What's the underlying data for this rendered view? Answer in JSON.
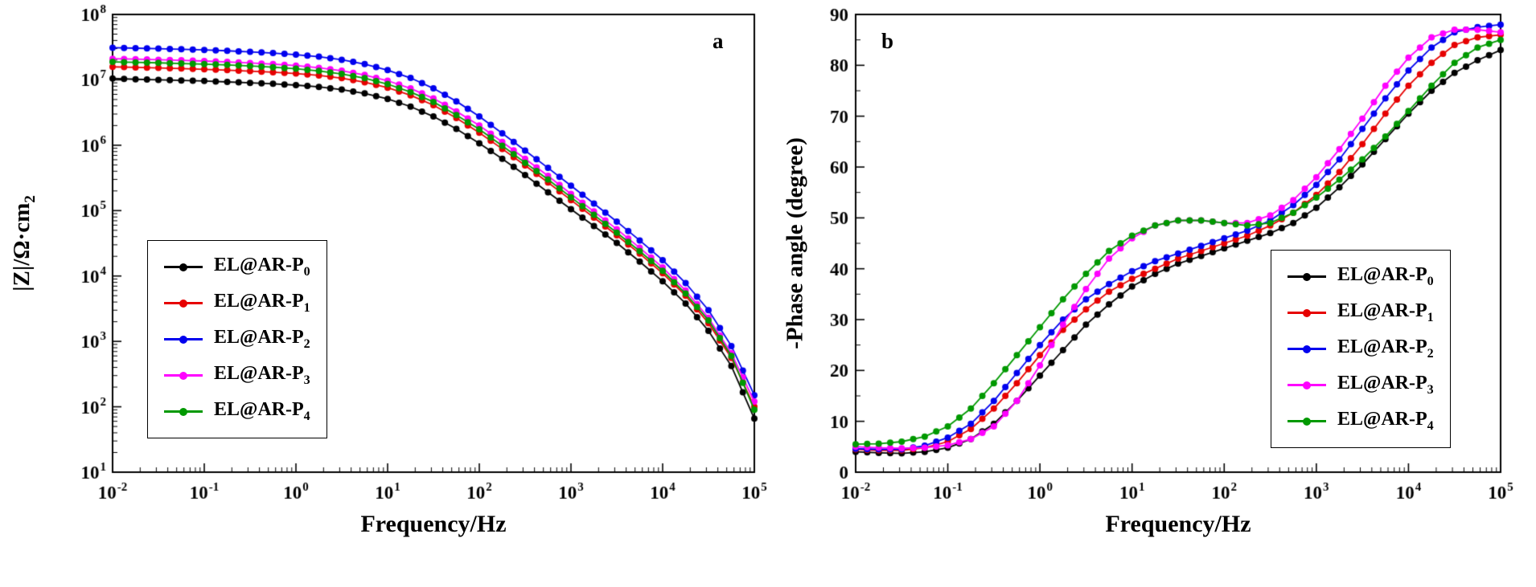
{
  "figure": {
    "background": "#ffffff",
    "panels": [
      {
        "label": "a",
        "x_title": "Frequency/Hz",
        "y_title_base": "|Z|/Ω·cm",
        "y_title_sub": "2"
      },
      {
        "label": "b",
        "x_title": "Frequency/Hz",
        "y_title": "-Phase angle (degree)"
      }
    ]
  },
  "chart_data": [
    {
      "type": "line",
      "title": "Bode impedance modulus plot (panel a)",
      "xlabel": "Frequency/Hz",
      "ylabel": "|Z|/Ω·cm2",
      "xscale": "log",
      "yscale": "log",
      "xlim": [
        0.01,
        100000
      ],
      "ylim": [
        10,
        100000000
      ],
      "xtick_exponents": [
        -2,
        -1,
        0,
        1,
        2,
        3,
        4,
        5
      ],
      "ytick_exponents": [
        1,
        2,
        3,
        4,
        5,
        6,
        7,
        8
      ],
      "legend_position": "lower-left",
      "grid": false,
      "x": [
        0.01,
        0.0178,
        0.0316,
        0.0562,
        0.1,
        0.178,
        0.316,
        0.562,
        1,
        1.78,
        3.16,
        5.62,
        10,
        17.8,
        31.6,
        56.2,
        100,
        178,
        316,
        562,
        1000,
        1780,
        3160,
        5620,
        10000,
        17800,
        31600,
        56200,
        100000
      ],
      "series": [
        {
          "name": "EL@AR-P0",
          "label_base": "EL@AR-P",
          "label_sub": "0",
          "color": "#000000",
          "values": [
            10500000,
            10200000,
            10000000,
            9800000,
            9600000,
            9300000,
            9000000,
            8700000,
            8300000,
            7800000,
            7100000,
            6200000,
            5100000,
            3900000,
            2750000,
            1780000,
            1070000,
            620000,
            350000,
            190000,
            105000,
            58000,
            32000,
            16600,
            8300,
            3800,
            1450,
            420,
            66
          ]
        },
        {
          "name": "EL@AR-P1",
          "label_base": "EL@AR-P",
          "label_sub": "1",
          "color": "#e60000",
          "values": [
            15800000,
            15500000,
            15200000,
            14900000,
            14500000,
            14100000,
            13600000,
            13100000,
            12500000,
            11700000,
            10600000,
            9200000,
            7600000,
            5800000,
            4100000,
            2600000,
            1550000,
            880000,
            490000,
            270000,
            145000,
            78000,
            42000,
            22000,
            11000,
            5000,
            1900,
            560,
            100
          ]
        },
        {
          "name": "EL@AR-P2",
          "label_base": "EL@AR-P",
          "label_sub": "2",
          "color": "#0000ee",
          "values": [
            31000000,
            30500000,
            30000000,
            29400000,
            28700000,
            27800000,
            26800000,
            25700000,
            24300000,
            22600000,
            20300000,
            17400000,
            14100000,
            10700000,
            7400000,
            4700000,
            2750000,
            1520000,
            830000,
            450000,
            240000,
            128000,
            68000,
            35000,
            17500,
            7800,
            3000,
            850,
            150
          ]
        },
        {
          "name": "EL@AR-P3",
          "label_base": "EL@AR-P",
          "label_sub": "3",
          "color": "#ff00ff",
          "values": [
            21000000,
            20700000,
            20300000,
            19900000,
            19400000,
            18800000,
            18100000,
            17400000,
            16500000,
            15300000,
            13800000,
            11900000,
            9700000,
            7400000,
            5200000,
            3300000,
            2000000,
            1120000,
            620000,
            340000,
            180000,
            97000,
            52000,
            27000,
            13500,
            6000,
            2300,
            660,
            120
          ]
        },
        {
          "name": "EL@AR-P4",
          "label_base": "EL@AR-P",
          "label_sub": "4",
          "color": "#009900",
          "values": [
            18800000,
            18500000,
            18200000,
            17800000,
            17400000,
            16900000,
            16300000,
            15600000,
            14800000,
            13700000,
            12300000,
            10600000,
            8600000,
            6500000,
            4600000,
            2900000,
            1750000,
            980000,
            540000,
            300000,
            160000,
            86000,
            46000,
            24000,
            12000,
            5400,
            2100,
            600,
            90
          ]
        }
      ]
    },
    {
      "type": "line",
      "title": "Bode phase angle plot (panel b)",
      "xlabel": "Frequency/Hz",
      "ylabel": "-Phase angle (degree)",
      "xscale": "log",
      "yscale": "linear",
      "xlim": [
        0.01,
        100000
      ],
      "ylim": [
        0,
        90
      ],
      "xtick_exponents": [
        -2,
        -1,
        0,
        1,
        2,
        3,
        4,
        5
      ],
      "yticks": [
        0,
        10,
        20,
        30,
        40,
        50,
        60,
        70,
        80,
        90
      ],
      "ytick_step": 10,
      "yminor_step": 5,
      "legend_position": "lower-right",
      "grid": false,
      "x": [
        0.01,
        0.0178,
        0.0316,
        0.0562,
        0.1,
        0.178,
        0.316,
        0.562,
        1,
        1.78,
        3.16,
        5.62,
        10,
        17.8,
        31.6,
        56.2,
        100,
        178,
        316,
        562,
        1000,
        1780,
        3160,
        5620,
        10000,
        17800,
        31600,
        56200,
        100000
      ],
      "series": [
        {
          "name": "EL@AR-P0",
          "label_base": "EL@AR-P",
          "label_sub": "0",
          "color": "#000000",
          "values": [
            4.0,
            3.8,
            3.7,
            4.0,
            4.8,
            6.5,
            9.5,
            14,
            19,
            24,
            29,
            33,
            36.5,
            39,
            41,
            42.5,
            44,
            45.5,
            47,
            49,
            52,
            56,
            60.5,
            65.5,
            70.5,
            75,
            78.5,
            81,
            83
          ]
        },
        {
          "name": "EL@AR-P1",
          "label_base": "EL@AR-P",
          "label_sub": "1",
          "color": "#e60000",
          "values": [
            4.5,
            4.3,
            4.3,
            4.8,
            6.0,
            8.5,
            12.5,
            17.5,
            23,
            28,
            32,
            35.5,
            38,
            40,
            42,
            43.5,
            45,
            46.5,
            48.5,
            51,
            54.5,
            59,
            64.5,
            70.5,
            76,
            80.5,
            84,
            85.5,
            86
          ]
        },
        {
          "name": "EL@AR-P2",
          "label_base": "EL@AR-P",
          "label_sub": "2",
          "color": "#0000ee",
          "values": [
            4.6,
            4.5,
            4.5,
            5.2,
            6.8,
            9.5,
            14,
            19.5,
            25,
            30,
            34,
            37,
            39.5,
            41.5,
            43,
            44.5,
            46,
            47.5,
            49.5,
            52.5,
            56.5,
            61.5,
            67.5,
            73.5,
            79,
            83.5,
            86.5,
            87.5,
            88
          ]
        },
        {
          "name": "EL@AR-P3",
          "label_base": "EL@AR-P",
          "label_sub": "3",
          "color": "#ff00ff",
          "values": [
            5.0,
            4.8,
            4.7,
            4.8,
            5.3,
            6.5,
            9.0,
            14,
            21,
            29,
            36,
            42,
            46,
            48.5,
            49.5,
            49.5,
            49,
            49,
            50.5,
            53.5,
            58,
            63.5,
            69.5,
            76,
            81.5,
            85.5,
            87,
            87,
            86.5
          ]
        },
        {
          "name": "EL@AR-P4",
          "label_base": "EL@AR-P",
          "label_sub": "4",
          "color": "#009900",
          "values": [
            5.5,
            5.6,
            6.0,
            7.0,
            9.0,
            12.5,
            17.5,
            23,
            28.5,
            34,
            39,
            43.5,
            46.5,
            48.5,
            49.5,
            49.5,
            49,
            48.5,
            49,
            51,
            54,
            57.5,
            61.5,
            66,
            71,
            76,
            80.5,
            83.5,
            85
          ]
        }
      ]
    }
  ]
}
